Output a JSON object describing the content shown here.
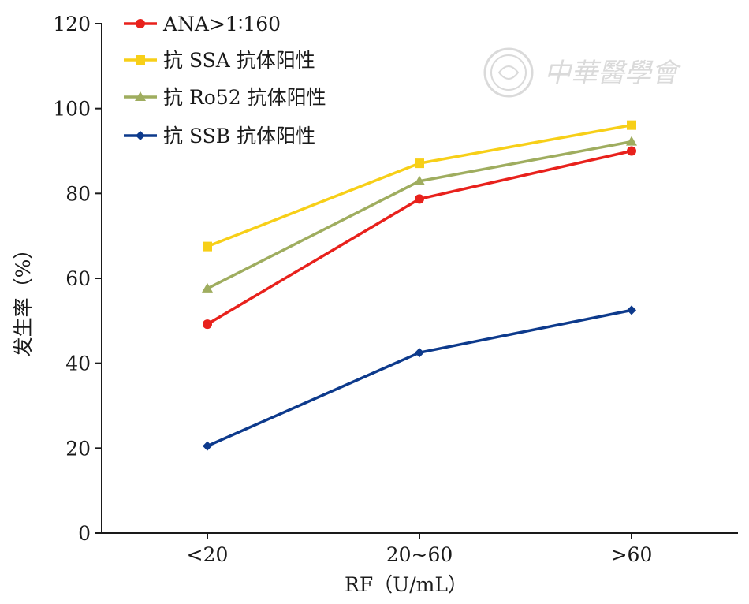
{
  "chart_data": {
    "type": "line",
    "categories": [
      "<20",
      "20~60",
      ">60"
    ],
    "xlabel": "RF（U/mL）",
    "ylabel": "发生率（%）",
    "ylim": [
      0,
      120
    ],
    "yticks": [
      0,
      20,
      40,
      60,
      80,
      100,
      120
    ],
    "grid": false,
    "legend_position": "top-left",
    "series": [
      {
        "name": "ANA>1∶160",
        "values": [
          49.2,
          78.7,
          90.0
        ],
        "color": "#e8211c",
        "marker": "circle"
      },
      {
        "name": "抗 SSA 抗体阳性",
        "values": [
          67.5,
          87.1,
          96.1
        ],
        "color": "#f7cf18",
        "marker": "square"
      },
      {
        "name": "抗 Ro52 抗体阳性",
        "values": [
          57.6,
          82.9,
          92.2
        ],
        "color": "#9fad5f",
        "marker": "triangle"
      },
      {
        "name": "抗 SSB 抗体阳性",
        "values": [
          20.5,
          42.5,
          52.5
        ],
        "color": "#0d3a8c",
        "marker": "diamond"
      }
    ]
  },
  "watermark": {
    "text": "中華醫學會",
    "icon": "society-seal-icon"
  }
}
